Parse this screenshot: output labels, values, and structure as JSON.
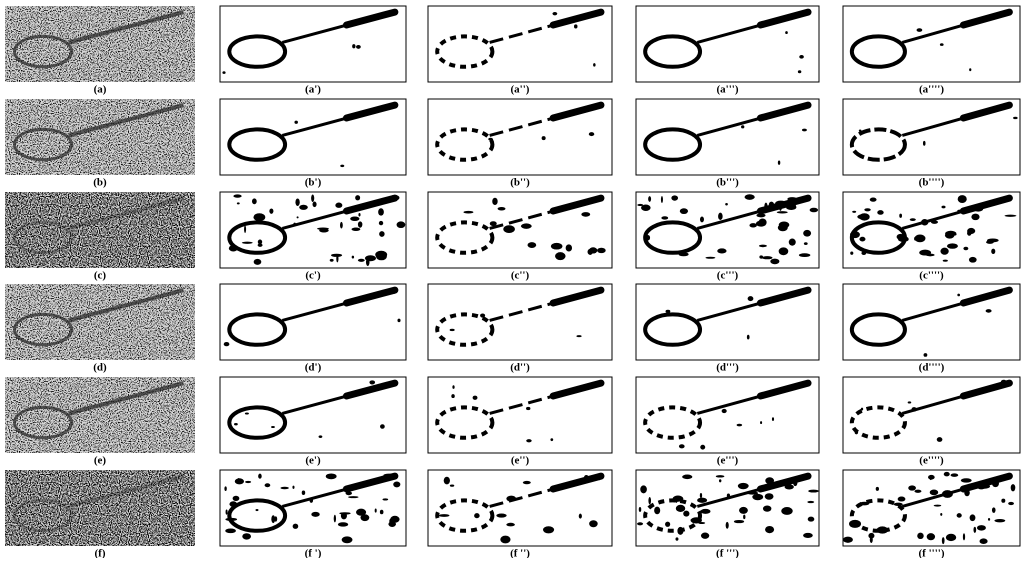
{
  "rows": [
    {
      "labels": [
        "(a)",
        "(a')",
        "(a'')",
        "(a''')",
        "(a'''')"
      ]
    },
    {
      "labels": [
        "(b)",
        "(b')",
        "(b'')",
        "(b''')",
        "(b'''')"
      ]
    },
    {
      "labels": [
        "(c)",
        "(c')",
        "(c'')",
        "(c''')",
        "(c'''')"
      ]
    },
    {
      "labels": [
        "(d)",
        "(d')",
        "(d'')",
        "(d''')",
        "(d'''')"
      ]
    },
    {
      "labels": [
        "(e)",
        "(e')",
        "(e'')",
        "(e''')",
        "(e'''')"
      ]
    },
    {
      "labels": [
        "(f)",
        "(f ')",
        "(f '')",
        "(f ''')",
        "(f '''')"
      ]
    }
  ]
}
